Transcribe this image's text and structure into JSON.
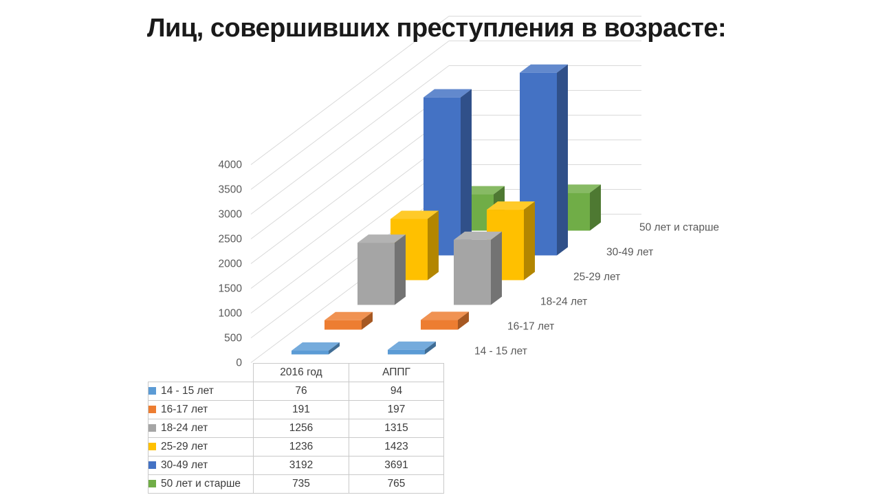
{
  "title": "Лиц, совершивших преступления в возрасте:",
  "chart_data": {
    "type": "bar",
    "variant": "3d-column",
    "title": "Лиц, совершивших преступления в возрасте:",
    "column_categories": [
      "2016 год",
      "АППГ"
    ],
    "series": [
      {
        "name": "14 - 15 лет",
        "color": "#5B9BD5",
        "values": [
          76,
          94
        ]
      },
      {
        "name": "16-17 лет",
        "color": "#ED7D31",
        "values": [
          191,
          197
        ]
      },
      {
        "name": "18-24 лет",
        "color": "#A5A5A5",
        "values": [
          1256,
          1315
        ]
      },
      {
        "name": "25-29 лет",
        "color": "#FFC000",
        "values": [
          1236,
          1423
        ]
      },
      {
        "name": "30-49 лет",
        "color": "#4472C4",
        "values": [
          3192,
          3691
        ]
      },
      {
        "name": "50 лет и старше",
        "color": "#70AD47",
        "values": [
          735,
          765
        ]
      }
    ],
    "value_axis": {
      "min": 0,
      "max": 4000,
      "step": 500,
      "tick_labels": [
        "0",
        "500",
        "1000",
        "1500",
        "2000",
        "2500",
        "3000",
        "3500",
        "4000"
      ]
    },
    "depth_axis_labels": [
      "14 - 15 лет",
      "16-17 лет",
      "18-24 лет",
      "25-29 лет",
      "30-49 лет",
      "50 лет и старше"
    ],
    "grid": true,
    "legend_position": "data-table"
  },
  "data_table": {
    "corner_label": "",
    "columns": [
      "2016 год",
      "АППГ"
    ],
    "rows": [
      {
        "label": "14 - 15 лет",
        "swatch_color": "#5B9BD5",
        "values": [
          "76",
          "94"
        ]
      },
      {
        "label": "16-17 лет",
        "swatch_color": "#ED7D31",
        "values": [
          "191",
          "197"
        ]
      },
      {
        "label": "18-24 лет",
        "swatch_color": "#A5A5A5",
        "values": [
          "1256",
          "1315"
        ]
      },
      {
        "label": "25-29 лет",
        "swatch_color": "#FFC000",
        "values": [
          "1236",
          "1423"
        ]
      },
      {
        "label": "30-49 лет",
        "swatch_color": "#4472C4",
        "values": [
          "3192",
          "3691"
        ]
      },
      {
        "label": "50 лет и старше",
        "swatch_color": "#70AD47",
        "values": [
          "735",
          "765"
        ]
      }
    ]
  },
  "colors": {
    "background": "#FFFFFF",
    "grid_line": "#D9D9D9",
    "axis_text": "#595959",
    "table_border": "#C9C9C9",
    "table_text": "#3A3A3A",
    "title_text": "#1A1A1A"
  }
}
